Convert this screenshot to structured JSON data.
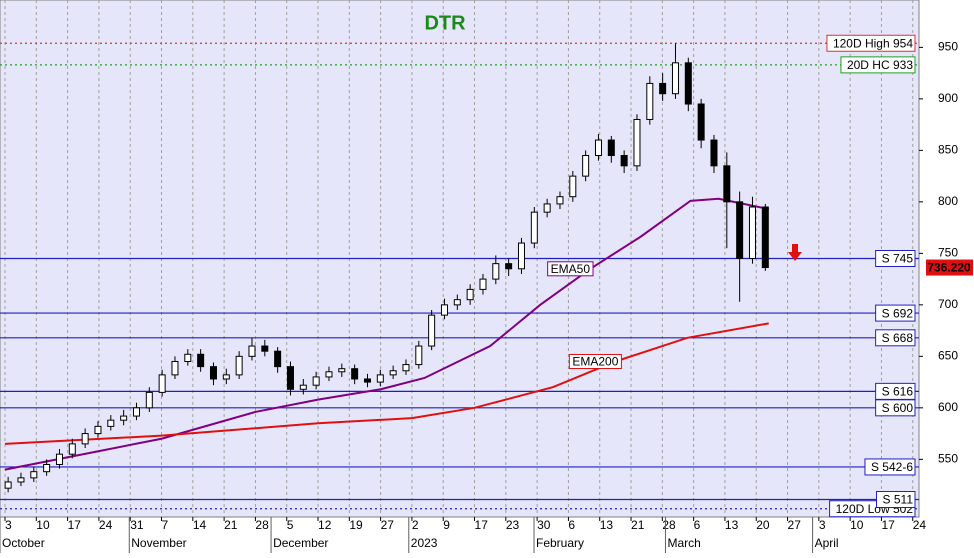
{
  "chart_data": {
    "type": "candlestick",
    "title": "DTR",
    "x": [
      0.1,
      0.51,
      0.92,
      1.33,
      1.74,
      2.15,
      2.56,
      2.97,
      3.38,
      3.79,
      4.2,
      4.61,
      5.02,
      5.43,
      5.84,
      6.25,
      6.66,
      7.07,
      7.48,
      7.89,
      8.3,
      8.71,
      9.12,
      9.53,
      9.94,
      10.35,
      10.76,
      11.17,
      11.58,
      11.99,
      12.4,
      12.81,
      13.22,
      13.63,
      14.04,
      14.45,
      14.86,
      15.27,
      15.68,
      16.09,
      16.5,
      16.91,
      17.32,
      17.73,
      18.14,
      18.55,
      18.96,
      19.37,
      19.78,
      20.19,
      20.6,
      21.01,
      21.42,
      21.83,
      22.24,
      22.65,
      23.06,
      23.47,
      23.88,
      24.29
    ],
    "open": [
      522,
      528,
      532,
      538,
      545,
      555,
      565,
      575,
      582,
      588,
      592,
      600,
      615,
      632,
      645,
      652,
      640,
      628,
      632,
      650,
      660,
      655,
      640,
      618,
      622,
      630,
      635,
      638,
      628,
      625,
      632,
      636,
      642,
      660,
      690,
      700,
      705,
      715,
      725,
      740,
      735,
      760,
      790,
      798,
      805,
      825,
      845,
      860,
      845,
      835,
      880,
      915,
      905,
      935,
      895,
      860,
      835,
      800,
      745,
      795
    ],
    "high": [
      533,
      537,
      543,
      550,
      560,
      570,
      580,
      587,
      593,
      598,
      605,
      620,
      637,
      650,
      657,
      657,
      644,
      638,
      655,
      668,
      666,
      659,
      645,
      628,
      635,
      640,
      643,
      642,
      633,
      637,
      641,
      647,
      665,
      695,
      706,
      710,
      720,
      730,
      748,
      745,
      765,
      795,
      803,
      810,
      830,
      850,
      866,
      864,
      850,
      885,
      922,
      925,
      954,
      940,
      900,
      865,
      848,
      810,
      805,
      798
    ],
    "low": [
      518,
      524,
      528,
      534,
      541,
      551,
      561,
      571,
      578,
      583,
      588,
      596,
      611,
      628,
      641,
      635,
      622,
      623,
      628,
      646,
      650,
      634,
      612,
      613,
      618,
      626,
      630,
      623,
      620,
      621,
      628,
      632,
      638,
      656,
      686,
      695,
      700,
      710,
      720,
      728,
      730,
      755,
      785,
      793,
      800,
      820,
      840,
      838,
      828,
      830,
      875,
      898,
      900,
      888,
      852,
      828,
      755,
      703,
      740,
      733
    ],
    "close": [
      528,
      532,
      538,
      545,
      555,
      565,
      575,
      582,
      588,
      592,
      600,
      615,
      632,
      645,
      652,
      640,
      628,
      632,
      650,
      660,
      655,
      640,
      618,
      622,
      630,
      635,
      638,
      628,
      625,
      632,
      636,
      642,
      660,
      690,
      700,
      705,
      715,
      725,
      740,
      735,
      760,
      790,
      798,
      805,
      825,
      845,
      860,
      845,
      835,
      880,
      915,
      905,
      935,
      895,
      860,
      835,
      800,
      745,
      795,
      736.22
    ],
    "last_price": {
      "value": 736.22,
      "label": "736.220"
    },
    "series": [
      {
        "name": "EMA50",
        "color": "#800080",
        "x": [
          0,
          3,
          5,
          8,
          10,
          12,
          13.4,
          15.5,
          17.1,
          18.7,
          20.3,
          21.9,
          22.8,
          24.4
        ],
        "values": [
          540,
          558,
          570,
          596,
          608,
          618,
          629,
          660,
          700,
          735,
          766,
          801,
          803,
          793
        ]
      },
      {
        "name": "EMA200",
        "color": "#e01010",
        "x": [
          0,
          5,
          10,
          13,
          15,
          17.5,
          19.5,
          21.8,
          24.4
        ],
        "values": [
          565,
          573,
          585,
          590,
          600,
          620,
          645,
          668,
          682
        ]
      }
    ],
    "levels": [
      {
        "name": "120D High 954",
        "value": 954,
        "color": "#e03030",
        "style": "dotted"
      },
      {
        "name": "20D HC 933",
        "value": 933,
        "color": "#20a020",
        "style": "dotted"
      },
      {
        "name": "S 745",
        "value": 745,
        "color": "#2020c0",
        "style": "solid"
      },
      {
        "name": "S 692",
        "value": 692,
        "color": "#2020c0",
        "style": "solid"
      },
      {
        "name": "S 668",
        "value": 668,
        "color": "#2020c0",
        "style": "solid"
      },
      {
        "name": "S 616",
        "value": 616,
        "color": "#2020c0",
        "style": "solid"
      },
      {
        "name": "S 600",
        "value": 600,
        "color": "#2020c0",
        "style": "solid"
      },
      {
        "name": "S 542-6",
        "value": 542.6,
        "color": "#2020c0",
        "style": "solid"
      },
      {
        "name": "120D Low 502",
        "value": 502,
        "color": "#2020c0",
        "style": "dotted"
      },
      {
        "name": "S 511",
        "value": 511,
        "color": "#2020c0",
        "style": "solid"
      }
    ],
    "xlim": [
      -0.16,
      29.2
    ],
    "ylim": [
      494,
      996
    ],
    "yticks": [
      550,
      600,
      650,
      700,
      750,
      800,
      850,
      900,
      950
    ],
    "xticks": [
      {
        "value": 0,
        "label": "3"
      },
      {
        "value": 1,
        "label": "10"
      },
      {
        "value": 2,
        "label": "17"
      },
      {
        "value": 3,
        "label": "24"
      },
      {
        "value": 4,
        "label": "31"
      },
      {
        "value": 5,
        "label": "7"
      },
      {
        "value": 6,
        "label": "14"
      },
      {
        "value": 7,
        "label": "21"
      },
      {
        "value": 8,
        "label": "28"
      },
      {
        "value": 9,
        "label": "5"
      },
      {
        "value": 10,
        "label": "12"
      },
      {
        "value": 11,
        "label": "19"
      },
      {
        "value": 12,
        "label": "27"
      },
      {
        "value": 13,
        "label": "2"
      },
      {
        "value": 14,
        "label": "9"
      },
      {
        "value": 15,
        "label": "17"
      },
      {
        "value": 16,
        "label": "23"
      },
      {
        "value": 17,
        "label": "30"
      },
      {
        "value": 18,
        "label": "6"
      },
      {
        "value": 19,
        "label": "13"
      },
      {
        "value": 20,
        "label": "21"
      },
      {
        "value": 21,
        "label": "28"
      },
      {
        "value": 22,
        "label": "6"
      },
      {
        "value": 23,
        "label": "13"
      },
      {
        "value": 24,
        "label": "20"
      },
      {
        "value": 25,
        "label": "27"
      },
      {
        "value": 26,
        "label": "3"
      },
      {
        "value": 27,
        "label": "10"
      },
      {
        "value": 28,
        "label": "17"
      },
      {
        "value": 29,
        "label": "24"
      }
    ],
    "months": [
      {
        "value": -0.16,
        "label": "October"
      },
      {
        "value": 3.97,
        "label": "November"
      },
      {
        "value": 8.5,
        "label": "December"
      },
      {
        "value": 12.9,
        "label": "2023"
      },
      {
        "value": 16.9,
        "label": "February"
      },
      {
        "value": 21.1,
        "label": "March"
      },
      {
        "value": 25.8,
        "label": "April"
      }
    ],
    "grid": true,
    "up_color": "#ffffff",
    "down_color": "#000000",
    "background": "#e6e6fa"
  }
}
